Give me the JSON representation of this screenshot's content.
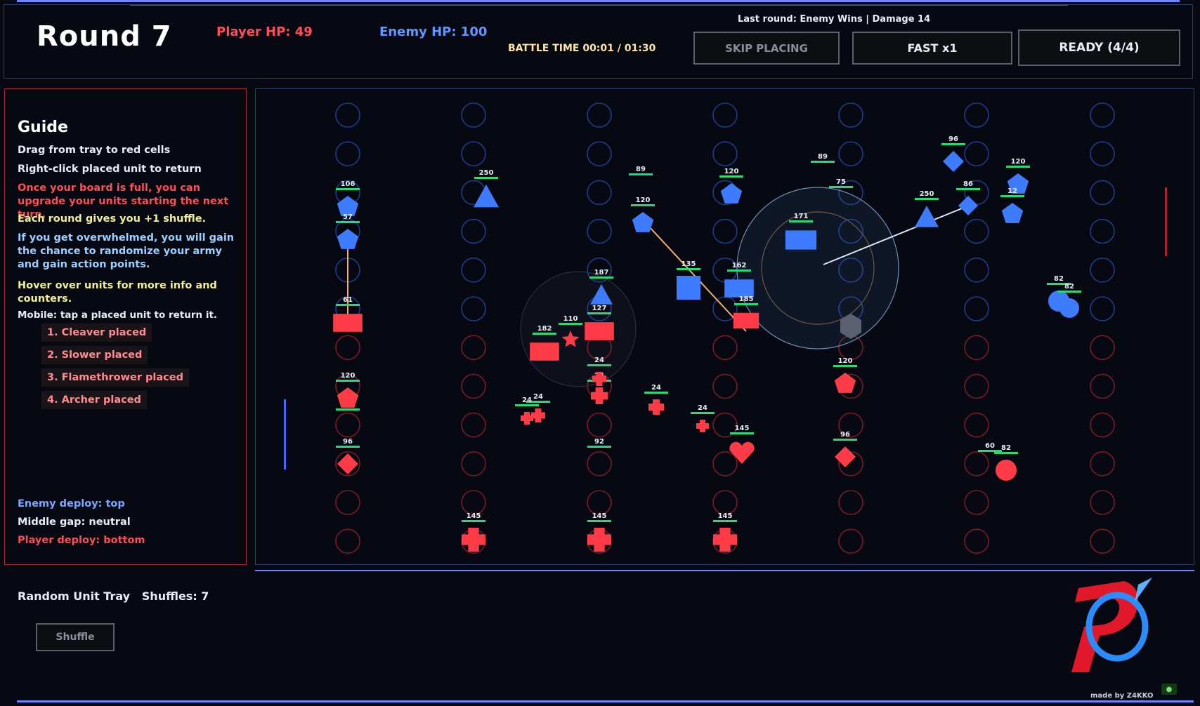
{
  "header": {
    "round": "Round 7",
    "player_hp": "Player HP: 49",
    "enemy_hp": "Enemy HP: 100",
    "battle_time": "BATTLE TIME 00:01 / 01:30",
    "last_round": "Last round: Enemy Wins | Damage 14",
    "skip_label": "SKIP PLACING",
    "fast_label": "FAST x1",
    "ready_label": "READY (4/4)"
  },
  "guide": {
    "title": "Guide",
    "line1": "Drag from tray to red cells",
    "line2": "Right-click placed unit to return",
    "line3": "Once your board is full, you can upgrade your units starting the next turn.",
    "line4": "Each round gives you +1 shuffle.",
    "line5": "If you get overwhelmed, you will gain the chance to randomize your army and gain action points.",
    "line6": "Hover over units for more info and counters.",
    "line7": "Mobile: tap a placed unit to return it.",
    "placed": [
      "1. Cleaver placed",
      "2. Slower placed",
      "3. Flamethrower placed",
      "4. Archer placed"
    ],
    "enemy_deploy": "Enemy deploy: top",
    "middle_gap": "Middle gap: neutral",
    "player_deploy": "Player deploy: bottom"
  },
  "tray": {
    "title": "Random Unit Tray",
    "shuffles": "Shuffles: 7",
    "shuffle_label": "Shuffle"
  },
  "footer": {
    "made_by": "made by Z4KKO"
  },
  "colors": {
    "player": "#ff3b47",
    "enemy": "#3d7bff",
    "hp_bar": "#22dd77",
    "background": "#060912"
  },
  "board": {
    "enemy_units": [
      {
        "shape": "pentagon",
        "hp": "106"
      },
      {
        "shape": "pentagon",
        "hp": "57"
      },
      {
        "shape": "triangle",
        "hp": "250"
      },
      {
        "shape": "moon",
        "hp": "89"
      },
      {
        "shape": "pentagon",
        "hp": "120"
      },
      {
        "shape": "pentagon",
        "hp": "120"
      },
      {
        "shape": "moon",
        "hp": "89"
      },
      {
        "shape": "moon",
        "hp": "75"
      },
      {
        "shape": "rect",
        "hp": "171"
      },
      {
        "shape": "diamond",
        "hp": "96"
      },
      {
        "shape": "diamond",
        "hp": "86"
      },
      {
        "shape": "triangle",
        "hp": "250"
      },
      {
        "shape": "pentagon",
        "hp": "120"
      },
      {
        "shape": "pentagon",
        "hp": "12"
      },
      {
        "shape": "triangle",
        "hp": "187"
      },
      {
        "shape": "square",
        "hp": "135"
      },
      {
        "shape": "rect",
        "hp": "162"
      },
      {
        "shape": "circle",
        "hp": "82"
      },
      {
        "shape": "circle",
        "hp": "82"
      }
    ],
    "player_units": [
      {
        "shape": "rect",
        "hp": "61"
      },
      {
        "shape": "star",
        "hp": "110"
      },
      {
        "shape": "rect",
        "hp": "182"
      },
      {
        "shape": "rect",
        "hp": "127"
      },
      {
        "shape": "rect",
        "hp": "185"
      },
      {
        "shape": "pentagon",
        "hp": "120"
      },
      {
        "shape": "moon",
        "hp": ""
      },
      {
        "shape": "diamond",
        "hp": "96"
      },
      {
        "shape": "cross",
        "hp": "24"
      },
      {
        "shape": "cross",
        "hp": "24"
      },
      {
        "shape": "cross",
        "hp": "24"
      },
      {
        "shape": "cross",
        "hp": "24"
      },
      {
        "shape": "cross",
        "hp": "24"
      },
      {
        "shape": "cross",
        "hp": "24"
      },
      {
        "shape": "heart",
        "hp": "145"
      },
      {
        "shape": "moon",
        "hp": "92"
      },
      {
        "shape": "pentagon",
        "hp": "120"
      },
      {
        "shape": "diamond",
        "hp": "96"
      },
      {
        "shape": "moon",
        "hp": "60"
      },
      {
        "shape": "circle",
        "hp": "82"
      },
      {
        "shape": "cross",
        "hp": "145"
      },
      {
        "shape": "cross",
        "hp": "145"
      },
      {
        "shape": "cross",
        "hp": "145"
      }
    ]
  }
}
